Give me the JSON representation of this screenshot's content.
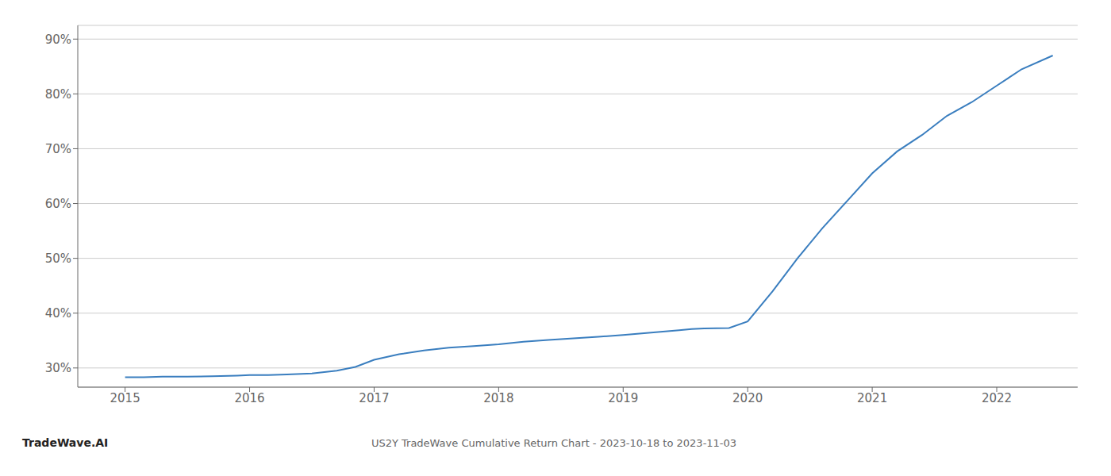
{
  "chart_data": {
    "type": "line",
    "title": "US2Y TradeWave Cumulative Return Chart - 2023-10-18 to 2023-11-03",
    "annotations": [
      "TradeWave.AI"
    ],
    "color": "#3a7ebf",
    "grid": "y",
    "x": [
      2015.0,
      2015.15,
      2015.3,
      2015.5,
      2015.7,
      2015.9,
      2016.0,
      2016.15,
      2016.3,
      2016.5,
      2016.7,
      2016.85,
      2017.0,
      2017.2,
      2017.4,
      2017.6,
      2017.8,
      2018.0,
      2018.2,
      2018.4,
      2018.6,
      2018.8,
      2019.0,
      2019.15,
      2019.3,
      2019.45,
      2019.55,
      2019.65,
      2019.75,
      2019.85,
      2020.0,
      2020.2,
      2020.4,
      2020.6,
      2020.8,
      2021.0,
      2021.2,
      2021.4,
      2021.6,
      2021.8,
      2022.0,
      2022.2,
      2022.45
    ],
    "values": [
      28.3,
      28.3,
      28.4,
      28.4,
      28.5,
      28.6,
      28.7,
      28.7,
      28.8,
      29.0,
      29.5,
      30.2,
      31.5,
      32.5,
      33.2,
      33.7,
      34.0,
      34.3,
      34.8,
      35.1,
      35.4,
      35.7,
      36.0,
      36.3,
      36.6,
      36.9,
      37.1,
      37.2,
      37.25,
      37.3,
      38.5,
      44.0,
      50.0,
      55.5,
      60.5,
      65.5,
      69.5,
      72.5,
      76.0,
      78.5,
      81.5,
      84.5,
      87.0
    ],
    "xlim": [
      2014.62,
      2022.65
    ],
    "ylim": [
      26.5,
      92.5
    ],
    "xticks": [
      2015,
      2016,
      2017,
      2018,
      2019,
      2020,
      2021,
      2022
    ],
    "yticks": [
      {
        "value": 30,
        "label": "30%"
      },
      {
        "value": 40,
        "label": "40%"
      },
      {
        "value": 50,
        "label": "50%"
      },
      {
        "value": 60,
        "label": "60%"
      },
      {
        "value": 70,
        "label": "70%"
      },
      {
        "value": 80,
        "label": "80%"
      },
      {
        "value": 90,
        "label": "90%"
      }
    ]
  }
}
